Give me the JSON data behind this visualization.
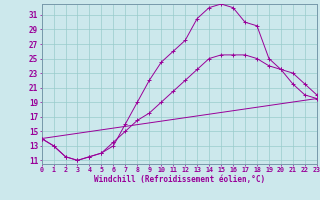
{
  "xlabel": "Windchill (Refroidissement éolien,°C)",
  "ylabel_ticks": [
    11,
    13,
    15,
    17,
    19,
    21,
    23,
    25,
    27,
    29,
    31
  ],
  "xtick_labels": [
    "0",
    "1",
    "2",
    "3",
    "4",
    "5",
    "6",
    "7",
    "8",
    "9",
    "10",
    "11",
    "12",
    "13",
    "14",
    "15",
    "16",
    "17",
    "18",
    "19",
    "20",
    "21",
    "22",
    "23"
  ],
  "xlim": [
    0,
    23
  ],
  "ylim": [
    10.5,
    32.5
  ],
  "bg_color": "#cce8ec",
  "grid_color": "#99cccc",
  "line_color": "#990099",
  "line1_x": [
    0,
    1,
    2,
    3,
    4,
    5,
    6,
    7,
    8,
    9,
    10,
    11,
    12,
    13,
    14,
    15,
    16,
    17,
    18,
    19,
    20,
    21,
    22,
    23
  ],
  "line1_y": [
    14.0,
    13.0,
    11.5,
    11.0,
    11.5,
    12.0,
    13.0,
    16.0,
    19.0,
    22.0,
    24.5,
    26.0,
    27.5,
    30.5,
    32.0,
    32.5,
    32.0,
    30.0,
    29.5,
    25.0,
    23.5,
    21.5,
    20.0,
    19.5
  ],
  "line2_x": [
    0,
    1,
    2,
    3,
    4,
    5,
    6,
    7,
    8,
    9,
    10,
    11,
    12,
    13,
    14,
    15,
    16,
    17,
    18,
    19,
    20,
    21,
    22,
    23
  ],
  "line2_y": [
    14.0,
    13.0,
    11.5,
    11.0,
    11.5,
    12.0,
    13.5,
    15.0,
    16.5,
    17.5,
    19.0,
    20.5,
    22.0,
    23.5,
    25.0,
    25.5,
    25.5,
    25.5,
    25.0,
    24.0,
    23.5,
    23.0,
    21.5,
    20.0
  ],
  "line3_x": [
    0,
    23
  ],
  "line3_y": [
    14.0,
    19.5
  ]
}
